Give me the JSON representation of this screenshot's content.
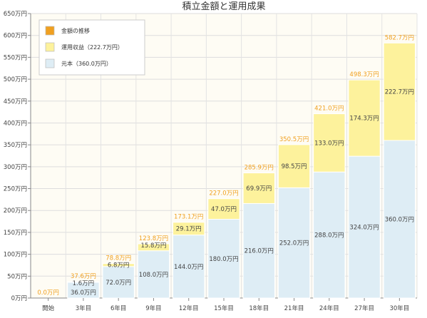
{
  "chart_data": {
    "type": "bar",
    "title": "積立金額と運用成果",
    "unit_suffix": "万円",
    "categories": [
      "開始",
      "3年目",
      "6年目",
      "9年目",
      "12年目",
      "15年目",
      "18年目",
      "21年目",
      "24年目",
      "27年目",
      "30年目"
    ],
    "series": [
      {
        "name": "元本（360.0万円）",
        "values": [
          0,
          36.0,
          72.0,
          108.0,
          144.0,
          180.0,
          216.0,
          252.0,
          288.0,
          324.0,
          360.0
        ],
        "labels": [
          "",
          "36.0万円",
          "72.0万円",
          "108.0万円",
          "144.0万円",
          "180.0万円",
          "216.0万円",
          "252.0万円",
          "288.0万円",
          "324.0万円",
          "360.0万円"
        ],
        "color": "#deedf5"
      },
      {
        "name": "運用収益（222.7万円）",
        "values": [
          0,
          1.6,
          6.8,
          15.8,
          29.1,
          47.0,
          69.9,
          98.5,
          133.0,
          174.3,
          222.7
        ],
        "labels": [
          "",
          "1.6万円",
          "6.8万円",
          "15.8万円",
          "29.1万円",
          "47.0万円",
          "69.9万円",
          "98.5万円",
          "133.0万円",
          "174.3万円",
          "222.7万円"
        ],
        "color": "#fdf29c"
      },
      {
        "name": "金額の推移",
        "values": [
          0.0,
          37.6,
          78.8,
          123.8,
          173.1,
          227.0,
          285.9,
          350.5,
          421.0,
          498.3,
          582.7
        ],
        "labels": [
          "0.0万円",
          "37.6万円",
          "78.8万円",
          "123.8万円",
          "173.1万円",
          "227.0万円",
          "285.9万円",
          "350.5万円",
          "421.0万円",
          "498.3万円",
          "582.7万円"
        ],
        "color": "#f0a020"
      }
    ],
    "ylim": [
      0,
      650
    ],
    "yticks": [
      0,
      50,
      100,
      150,
      200,
      250,
      300,
      350,
      400,
      450,
      500,
      550,
      600,
      650
    ],
    "ytick_labels": [
      "0万円",
      "50万円",
      "100万円",
      "150万円",
      "200万円",
      "250万円",
      "300万円",
      "350万円",
      "400万円",
      "450万円",
      "500万円",
      "550万円",
      "600万円",
      "650万円"
    ],
    "legend": {
      "position": "top-left",
      "items": [
        "金額の推移",
        "運用収益（222.7万円）",
        "元本（360.0万円）"
      ]
    },
    "grid": true
  }
}
